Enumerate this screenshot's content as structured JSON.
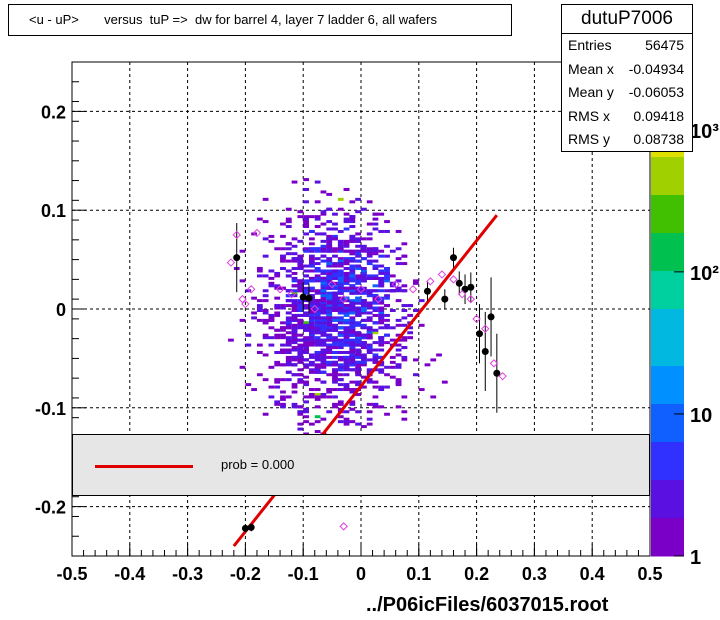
{
  "title": "<u - uP>       versus  tuP =>  dw for barrel 4, layer 7 ladder 6, all wafers",
  "stats": {
    "name": "dutuP7006",
    "rows": [
      {
        "key": "Entries",
        "value": "56475"
      },
      {
        "key": "Mean x",
        "value": "-0.04934"
      },
      {
        "key": "Mean y",
        "value": "-0.06053"
      },
      {
        "key": "RMS x",
        "value": "0.09418"
      },
      {
        "key": "RMS y",
        "value": "0.08738"
      }
    ]
  },
  "legend": {
    "label": "prob = 0.000",
    "color": "#e00000"
  },
  "footer": "../P06icFiles/6037015.root",
  "chart_data": {
    "type": "heatmap",
    "title": "<u - uP>       versus  tuP =>  dw for barrel 4, layer 7 ladder 6, all wafers",
    "xlim": [
      -0.5,
      0.5
    ],
    "ylim": [
      -0.25,
      0.25
    ],
    "x_ticks": [
      "-0.5",
      "-0.4",
      "-0.3",
      "-0.2",
      "-0.1",
      "0",
      "0.1",
      "0.2",
      "0.3",
      "0.4",
      "0.5"
    ],
    "y_ticks": [
      "-0.2",
      "-0.1",
      "0",
      "0.1",
      "0.2"
    ],
    "grid": true,
    "colorbar": {
      "scale": "log",
      "ticks": [
        "1",
        "10",
        "10²",
        "10³"
      ],
      "min": 1,
      "max": 3000
    },
    "palette": [
      "#7a00c8",
      "#5a10e0",
      "#3030ff",
      "#1060ff",
      "#0090ff",
      "#00b8e0",
      "#00d0a0",
      "#00c050",
      "#40c000",
      "#a0d000",
      "#e0e000",
      "#ffb000"
    ],
    "fit_line": {
      "color": "#e00000",
      "points": [
        [
          -0.22,
          -0.24
        ],
        [
          0.235,
          0.095
        ]
      ]
    },
    "profile_black": [
      {
        "x": -0.215,
        "y": 0.052,
        "err": 0.035
      },
      {
        "x": -0.2,
        "y": -0.222,
        "err": 0.004
      },
      {
        "x": -0.19,
        "y": -0.221,
        "err": 0.004
      },
      {
        "x": -0.1,
        "y": 0.012,
        "err": 0.015
      },
      {
        "x": -0.09,
        "y": 0.011,
        "err": 0.015
      },
      {
        "x": 0.115,
        "y": 0.018,
        "err": 0.01
      },
      {
        "x": 0.145,
        "y": 0.01,
        "err": 0.01
      },
      {
        "x": 0.16,
        "y": 0.052,
        "err": 0.01
      },
      {
        "x": 0.17,
        "y": 0.026,
        "err": 0.012
      },
      {
        "x": 0.18,
        "y": 0.02,
        "err": 0.015
      },
      {
        "x": 0.19,
        "y": 0.022,
        "err": 0.015
      },
      {
        "x": 0.205,
        "y": -0.025,
        "err": 0.03
      },
      {
        "x": 0.215,
        "y": -0.043,
        "err": 0.04
      },
      {
        "x": 0.225,
        "y": -0.008,
        "err": 0.04
      },
      {
        "x": 0.235,
        "y": -0.065,
        "err": 0.04
      }
    ],
    "profile_magenta": [
      {
        "x": -0.225,
        "y": 0.047
      },
      {
        "x": -0.215,
        "y": 0.075
      },
      {
        "x": -0.205,
        "y": 0.01
      },
      {
        "x": -0.2,
        "y": 0.005
      },
      {
        "x": -0.19,
        "y": 0.02
      },
      {
        "x": -0.18,
        "y": 0.077
      },
      {
        "x": -0.14,
        "y": 0.02
      },
      {
        "x": -0.12,
        "y": 0.015
      },
      {
        "x": -0.08,
        "y": 0.0
      },
      {
        "x": -0.05,
        "y": 0.025
      },
      {
        "x": -0.03,
        "y": 0.01
      },
      {
        "x": 0.0,
        "y": 0.02
      },
      {
        "x": 0.03,
        "y": 0.01
      },
      {
        "x": 0.06,
        "y": 0.025
      },
      {
        "x": 0.09,
        "y": 0.02
      },
      {
        "x": 0.12,
        "y": 0.028
      },
      {
        "x": 0.14,
        "y": 0.035
      },
      {
        "x": 0.16,
        "y": 0.03
      },
      {
        "x": 0.175,
        "y": 0.015
      },
      {
        "x": 0.19,
        "y": 0.01
      },
      {
        "x": 0.2,
        "y": -0.01
      },
      {
        "x": 0.215,
        "y": -0.02
      },
      {
        "x": 0.23,
        "y": -0.055
      },
      {
        "x": 0.245,
        "y": -0.068
      },
      {
        "x": -0.03,
        "y": -0.22
      }
    ]
  }
}
